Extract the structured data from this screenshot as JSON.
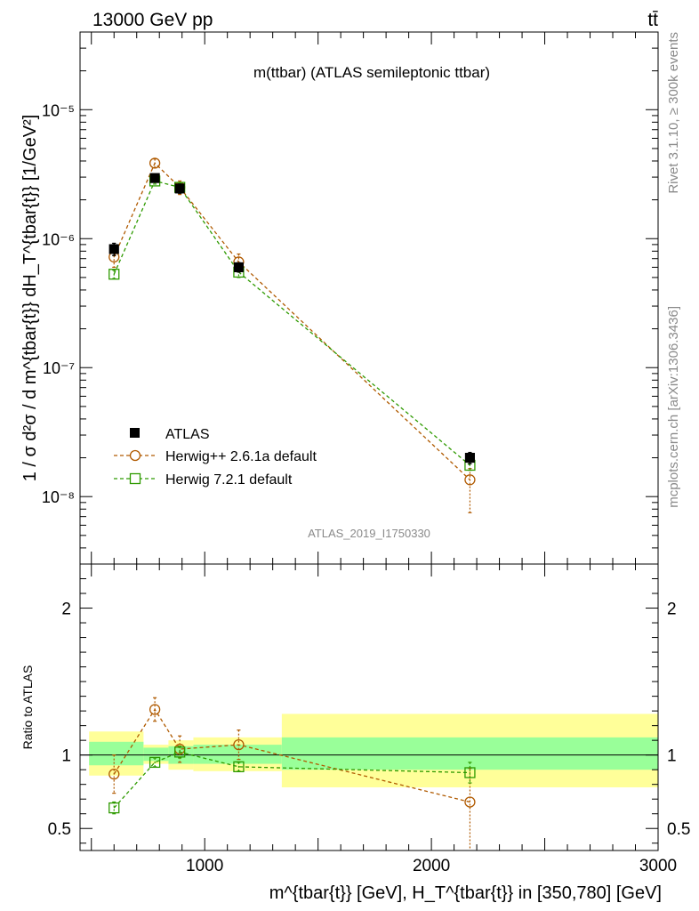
{
  "header": {
    "left_label": "13000 GeV pp",
    "right_label": "tt̄",
    "side_label_top": "Rivet 3.1.10, ≥ 300k events",
    "side_label_bottom": "mcplots.cern.ch [arXiv:1306.3436]",
    "watermark": "ATLAS_2019_I1750330"
  },
  "chart_data": [
    {
      "type": "line",
      "title": "m(ttbar) (ATLAS semileptonic ttbar)",
      "ylabel": "1 / σ d²σ / d m^{tbar{t}} dH_T^{tbar{t}} [1/GeV²]",
      "xlim": [
        450,
        3000
      ],
      "ylim": [
        3e-09,
        4e-05
      ],
      "yscale": "log",
      "y_ticks": [
        {
          "value": 1e-08,
          "label": "10⁻⁸"
        },
        {
          "value": 1e-07,
          "label": "10⁻⁷"
        },
        {
          "value": 1e-06,
          "label": "10⁻⁶"
        },
        {
          "value": 1e-05,
          "label": "10⁻⁵"
        }
      ],
      "legend": [
        "ATLAS",
        "Herwig++ 2.6.1a default",
        "Herwig 7.2.1 default"
      ],
      "legend_position": "bottom-left",
      "series": [
        {
          "name": "ATLAS",
          "color": "#000000",
          "marker": "filled-square",
          "x": [
            600,
            780,
            890,
            1150,
            2170
          ],
          "y": [
            8.3e-07,
            2.95e-06,
            2.45e-06,
            6e-07,
            2e-08
          ],
          "err_up": [
            9e-08,
            2e-07,
            2e-07,
            5e-08,
            2e-09
          ],
          "err_dn": [
            9e-08,
            2e-07,
            2e-07,
            5e-08,
            2e-09
          ]
        },
        {
          "name": "Herwig++ 2.6.1a default",
          "color": "#b05a00",
          "marker": "open-circle",
          "dash": "4,3",
          "x": [
            600,
            780,
            890,
            1150,
            2170
          ],
          "y": [
            7.2e-07,
            3.85e-06,
            2.5e-06,
            6.6e-07,
            1.35e-08
          ],
          "err_up": [
            1.2e-07,
            3e-07,
            3e-07,
            1e-07,
            3e-09
          ],
          "err_dn": [
            1.2e-07,
            3e-07,
            3e-07,
            1e-07,
            6e-09
          ]
        },
        {
          "name": "Herwig 7.2.1 default",
          "color": "#2e9a00",
          "marker": "open-square",
          "dash": "4,3",
          "x": [
            600,
            780,
            890,
            1150,
            2170
          ],
          "y": [
            5.3e-07,
            2.8e-06,
            2.5e-06,
            5.5e-07,
            1.75e-08
          ],
          "err_up": [
            4e-08,
            1.5e-07,
            2e-07,
            5e-08,
            1.5e-09
          ],
          "err_dn": [
            4e-08,
            1.5e-07,
            2e-07,
            5e-08,
            1.5e-09
          ]
        }
      ]
    },
    {
      "type": "line",
      "ylabel": "Ratio to ATLAS",
      "xlabel": "m^{tbar{t}} [GeV], H_T^{tbar{t}} in [350,780] [GeV]",
      "xlim": [
        450,
        3000
      ],
      "ylim": [
        0.35,
        2.3
      ],
      "x_ticks": [
        {
          "value": 1000,
          "label": "1000"
        },
        {
          "value": 2000,
          "label": "2000"
        },
        {
          "value": 3000,
          "label": "3000"
        }
      ],
      "y_ticks": [
        {
          "value": 0.5,
          "label": "0.5"
        },
        {
          "value": 1,
          "label": "1"
        },
        {
          "value": 2,
          "label": "2"
        }
      ],
      "bands": [
        {
          "x_low": 490,
          "x_high": 730,
          "inner": [
            0.93,
            1.09
          ],
          "outer": [
            0.86,
            1.16
          ]
        },
        {
          "x_low": 730,
          "x_high": 840,
          "inner": [
            0.96,
            1.05
          ],
          "outer": [
            0.94,
            1.07
          ]
        },
        {
          "x_low": 840,
          "x_high": 950,
          "inner": [
            0.94,
            1.06
          ],
          "outer": [
            0.9,
            1.1
          ]
        },
        {
          "x_low": 950,
          "x_high": 1340,
          "inner": [
            0.94,
            1.07
          ],
          "outer": [
            0.89,
            1.12
          ]
        },
        {
          "x_low": 1340,
          "x_high": 3000,
          "inner": [
            0.9,
            1.12
          ],
          "outer": [
            0.78,
            1.28
          ]
        }
      ],
      "series": [
        {
          "name": "Herwig++ 2.6.1a default",
          "color": "#b05a00",
          "marker": "open-circle",
          "dash": "4,3",
          "x": [
            600,
            780,
            890,
            1150,
            2170
          ],
          "y": [
            0.87,
            1.31,
            1.04,
            1.07,
            0.68
          ],
          "err_up": [
            0.13,
            0.08,
            0.09,
            0.1,
            0.23
          ],
          "err_dn": [
            0.13,
            0.08,
            0.09,
            0.1,
            0.35
          ]
        },
        {
          "name": "Herwig 7.2.1 default",
          "color": "#2e9a00",
          "marker": "open-square",
          "dash": "4,3",
          "x": [
            600,
            780,
            890,
            1150,
            2170
          ],
          "y": [
            0.64,
            0.95,
            1.02,
            0.92,
            0.88
          ],
          "err_up": [
            0.04,
            0.03,
            0.04,
            0.03,
            0.07
          ],
          "err_dn": [
            0.04,
            0.03,
            0.04,
            0.03,
            0.07
          ]
        }
      ]
    }
  ]
}
